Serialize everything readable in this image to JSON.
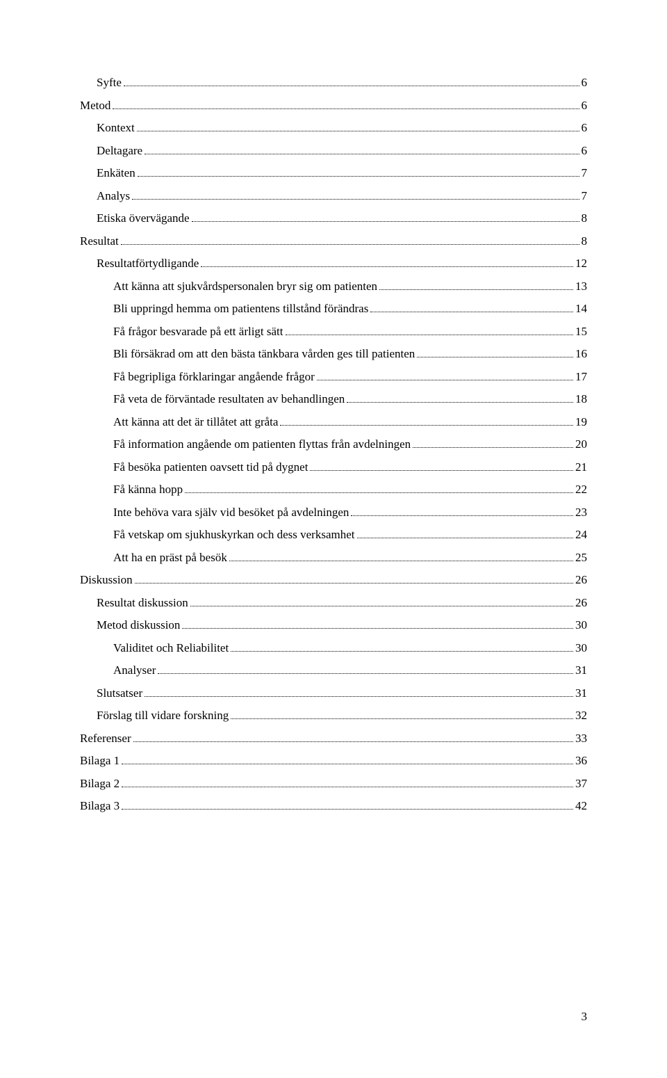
{
  "page_number": "3",
  "font_family": "Times New Roman",
  "text_color": "#000000",
  "background_color": "#ffffff",
  "toc": {
    "entries": [
      {
        "title": "Syfte",
        "page": "6",
        "indent": 1
      },
      {
        "title": "Metod",
        "page": "6",
        "indent": 0
      },
      {
        "title": "Kontext",
        "page": "6",
        "indent": 1
      },
      {
        "title": "Deltagare",
        "page": "6",
        "indent": 1
      },
      {
        "title": "Enkäten",
        "page": "7",
        "indent": 1
      },
      {
        "title": "Analys",
        "page": "7",
        "indent": 1
      },
      {
        "title": "Etiska övervägande",
        "page": "8",
        "indent": 1
      },
      {
        "title": "Resultat",
        "page": "8",
        "indent": 0
      },
      {
        "title": "Resultatförtydligande",
        "page": "12",
        "indent": 1
      },
      {
        "title": "Att känna att sjukvårdspersonalen bryr sig om patienten",
        "page": "13",
        "indent": 2
      },
      {
        "title": "Bli uppringd hemma om patientens tillstånd förändras",
        "page": "14",
        "indent": 2
      },
      {
        "title": "Få frågor besvarade på ett ärligt sätt",
        "page": "15",
        "indent": 2
      },
      {
        "title": "Bli försäkrad om att den bästa tänkbara vården ges till patienten",
        "page": "16",
        "indent": 2
      },
      {
        "title": "Få begripliga förklaringar angående frågor",
        "page": "17",
        "indent": 2
      },
      {
        "title": "Få veta de förväntade resultaten av behandlingen",
        "page": "18",
        "indent": 2
      },
      {
        "title": "Att känna att det är tillåtet att gråta",
        "page": "19",
        "indent": 2
      },
      {
        "title": "Få information angående om patienten flyttas från avdelningen",
        "page": "20",
        "indent": 2
      },
      {
        "title": "Få besöka patienten oavsett tid på dygnet",
        "page": "21",
        "indent": 2
      },
      {
        "title": "Få känna hopp",
        "page": "22",
        "indent": 2
      },
      {
        "title": "Inte behöva vara själv vid besöket på avdelningen",
        "page": "23",
        "indent": 2
      },
      {
        "title": "Få vetskap om sjukhuskyrkan och dess verksamhet",
        "page": "24",
        "indent": 2
      },
      {
        "title": "Att ha en präst på besök",
        "page": "25",
        "indent": 2
      },
      {
        "title": "Diskussion",
        "page": "26",
        "indent": 0
      },
      {
        "title": "Resultat diskussion",
        "page": "26",
        "indent": 1
      },
      {
        "title": "Metod diskussion",
        "page": "30",
        "indent": 1
      },
      {
        "title": "Validitet och Reliabilitet",
        "page": "30",
        "indent": 2
      },
      {
        "title": "Analyser",
        "page": "31",
        "indent": 2
      },
      {
        "title": "Slutsatser",
        "page": "31",
        "indent": 1
      },
      {
        "title": "Förslag till vidare forskning",
        "page": "32",
        "indent": 1
      },
      {
        "title": "Referenser",
        "page": "33",
        "indent": 0
      },
      {
        "title": "Bilaga 1",
        "page": "36",
        "indent": 0
      },
      {
        "title": "Bilaga 2",
        "page": "37",
        "indent": 0
      },
      {
        "title": "Bilaga 3",
        "page": "42",
        "indent": 0
      }
    ]
  }
}
